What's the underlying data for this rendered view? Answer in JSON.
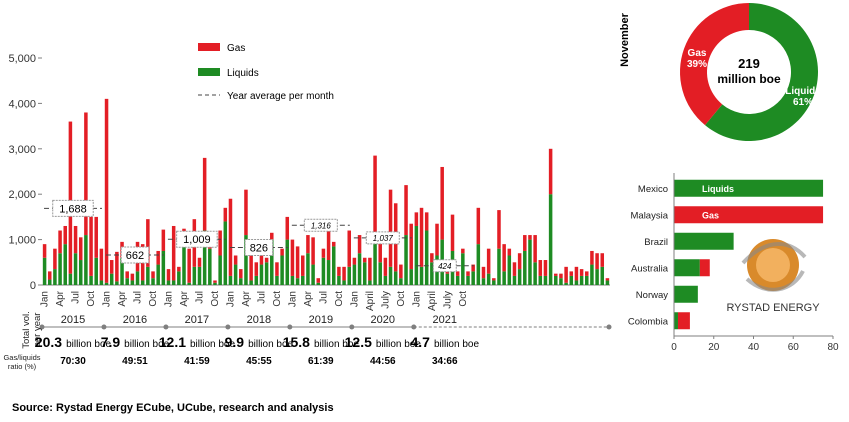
{
  "source": "Source: Rystad Energy ECube, UCube, research and analysis",
  "colors": {
    "gas": "#e31e25",
    "liquids": "#1e8b23",
    "axis": "#7f7f7f",
    "grid": "#d9d9d9"
  },
  "chart_data": [
    {
      "type": "bar",
      "stacked": true,
      "yticks": [
        "0",
        "1,000",
        "2,000",
        "3,000",
        "4,000",
        "5,000"
      ],
      "ylim": [
        0,
        5000
      ],
      "legend": {
        "placement": "top-center",
        "entries": [
          "Gas",
          "Liquids",
          "Year average per month"
        ]
      },
      "month_labels": [
        "Jan",
        "Apr",
        "Jul",
        "Oct",
        "Jan",
        "Apr",
        "Jul",
        "Oct",
        "Jan",
        "Apr",
        "Jul",
        "Oct",
        "Jan",
        "Apr",
        "Jul",
        "Oct",
        "Jan",
        "Apr",
        "Jul",
        "Oct",
        "Jan",
        "April",
        "July",
        "Oct",
        "Jan",
        "April",
        "July",
        "Oct"
      ],
      "years": [
        "2015",
        "2016",
        "2017",
        "2018",
        "2019",
        "2020",
        "2021"
      ],
      "year_averages": [
        {
          "year": "2015",
          "label": "1,688",
          "value": 1688
        },
        {
          "year": "2016",
          "label": "662",
          "value": 662
        },
        {
          "year": "2017",
          "label": "1,009",
          "value": 1009
        },
        {
          "year": "2018",
          "label": "826",
          "value": 826
        },
        {
          "year": "2019",
          "label": "1,316",
          "value": 1316
        },
        {
          "year": "2020",
          "label": "1,037",
          "value": 1037
        },
        {
          "year": "2021",
          "label": "424",
          "value": 424
        }
      ],
      "series": [
        {
          "name": "Liquids",
          "values": [
            600,
            120,
            350,
            700,
            900,
            250,
            700,
            550,
            1100,
            200,
            600,
            100,
            50,
            250,
            80,
            600,
            150,
            100,
            300,
            100,
            400,
            150,
            450,
            750,
            100,
            100,
            300,
            1000,
            50,
            400,
            400,
            1200,
            800,
            50,
            650,
            1400,
            200,
            450,
            150,
            1100,
            100,
            200,
            450,
            500,
            1000,
            200,
            650,
            1000,
            200,
            150,
            200,
            700,
            450,
            50,
            600,
            550,
            850,
            200,
            100,
            400,
            450,
            700,
            500,
            100,
            1000,
            500,
            200,
            400,
            300,
            150,
            1100,
            350,
            1300,
            400,
            1200,
            500,
            650,
            1000,
            250,
            750,
            200,
            700,
            200,
            300,
            900,
            150,
            250,
            100,
            800,
            300,
            650,
            200,
            350,
            750,
            1000,
            500,
            200,
            200,
            2000,
            200,
            150,
            50,
            200,
            100,
            200,
            200,
            450,
            350,
            400,
            100
          ]
        },
        {
          "name": "Gas",
          "values": [
            300,
            180,
            450,
            500,
            400,
            3350,
            600,
            500,
            2700,
            1300,
            900,
            700,
            4050,
            300,
            650,
            350,
            150,
            150,
            650,
            800,
            1050,
            150,
            300,
            470,
            250,
            1200,
            100,
            240,
            750,
            1050,
            200,
            1600,
            200,
            50,
            550,
            300,
            1700,
            200,
            200,
            1000,
            550,
            300,
            350,
            100,
            150,
            300,
            150,
            500,
            800,
            700,
            450,
            400,
            600,
            100,
            200,
            650,
            100,
            200,
            300,
            800,
            150,
            400,
            100,
            500,
            1850,
            600,
            400,
            1700,
            1500,
            300,
            1100,
            1000,
            300,
            1300,
            400,
            200,
            700,
            1600,
            100,
            800,
            100,
            100,
            100,
            150,
            800,
            250,
            550,
            50,
            850,
            600,
            150,
            300,
            350,
            350,
            100,
            600,
            350,
            350,
            1000,
            50,
            100,
            350,
            100,
            300,
            150,
            100,
            300,
            350,
            300,
            50
          ]
        }
      ],
      "bottom_row_label": "Total vol. per year",
      "ratio_row_label": "Gas/liquids ratio (%)",
      "totals": [
        {
          "num": "20.3",
          "unit": "billion boe",
          "ratio": "70:30"
        },
        {
          "num": "7.9",
          "unit": "billion boe",
          "ratio": "49:51"
        },
        {
          "num": "12.1",
          "unit": "billion boe",
          "ratio": "41:59"
        },
        {
          "num": "9.9",
          "unit": "billion boe",
          "ratio": "45:55"
        },
        {
          "num": "15.8",
          "unit": "billion boe",
          "ratio": "61:39"
        },
        {
          "num": "12.5",
          "unit": "billion boe",
          "ratio": "44:56"
        },
        {
          "num": "4.7",
          "unit": "billion boe",
          "ratio": "34:66"
        }
      ]
    },
    {
      "type": "pie",
      "side_label": "November",
      "center_value": "219",
      "center_unit": "million boe",
      "slices": [
        {
          "name": "Gas",
          "value": 39,
          "label": "39%"
        },
        {
          "name": "Liquids",
          "value": 61,
          "label": "61%"
        }
      ]
    },
    {
      "type": "bar",
      "orientation": "horizontal",
      "categories": [
        "Mexico",
        "Malaysia",
        "Brazil",
        "Australia",
        "Norway",
        "Colombia"
      ],
      "series": [
        {
          "name": "Liquids",
          "values": [
            75,
            0,
            30,
            13,
            12,
            2
          ]
        },
        {
          "name": "Gas",
          "values": [
            0,
            75,
            0,
            5,
            0,
            6
          ]
        }
      ],
      "bar_labels": {
        "Mexico": "Liquids",
        "Malaysia": "Gas"
      },
      "xticks": [
        "0",
        "20",
        "40",
        "60",
        "80"
      ],
      "xlim": [
        0,
        80
      ],
      "logo_text": "RYSTAD ENERGY"
    }
  ]
}
